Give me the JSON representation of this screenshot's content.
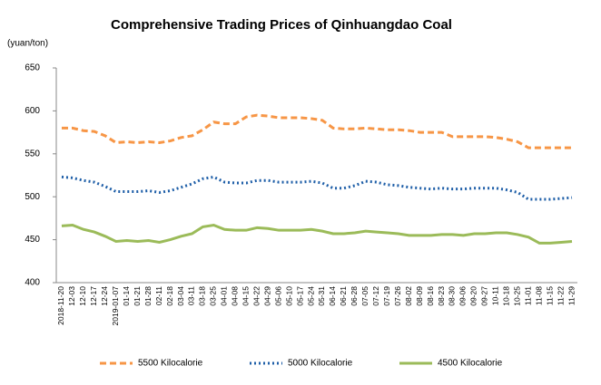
{
  "chart_data": {
    "type": "line",
    "title": "Comprehensive Trading Prices of Qinhuangdao Coal",
    "y_axis_label": "(yuan/ton)",
    "categories": [
      "2018-11-20",
      "12-03",
      "12-10",
      "12-17",
      "12-24",
      "2019-01-07",
      "01-14",
      "01-21",
      "01-28",
      "02-11",
      "02-18",
      "03-04",
      "03-11",
      "03-18",
      "03-25",
      "04-01",
      "04-08",
      "04-15",
      "04-22",
      "04-29",
      "05-06",
      "05-10",
      "05-17",
      "05-24",
      "05-31",
      "06-14",
      "06-21",
      "06-28",
      "07-05",
      "07-12",
      "07-19",
      "07-26",
      "08-02",
      "08-09",
      "08-16",
      "08-23",
      "08-30",
      "09-06",
      "09-20",
      "09-27",
      "10-11",
      "10-18",
      "10-25",
      "11-01",
      "11-08",
      "11-15",
      "11-22",
      "11-29"
    ],
    "series": [
      {
        "name": "5500 Kilocalorie",
        "color": "#f79646",
        "style": "dashed",
        "values": [
          580,
          580,
          577,
          576,
          571,
          563,
          564,
          563,
          564,
          563,
          565,
          569,
          571,
          578,
          587,
          585,
          585,
          593,
          595,
          594,
          592,
          592,
          592,
          591,
          589,
          580,
          579,
          579,
          580,
          579,
          578,
          578,
          577,
          575,
          575,
          575,
          570,
          570,
          570,
          570,
          569,
          567,
          564,
          557,
          557,
          557,
          557,
          557
        ]
      },
      {
        "name": "5000 Kilocalorie",
        "color": "#1f5fa8",
        "style": "dotted",
        "values": [
          523,
          522,
          519,
          517,
          512,
          506,
          506,
          506,
          507,
          505,
          507,
          511,
          515,
          521,
          523,
          517,
          516,
          516,
          519,
          519,
          517,
          517,
          517,
          518,
          516,
          510,
          510,
          513,
          518,
          517,
          514,
          513,
          511,
          510,
          509,
          510,
          509,
          509,
          510,
          510,
          510,
          508,
          505,
          497,
          497,
          497,
          498,
          499
        ]
      },
      {
        "name": "4500 Kilocalorie",
        "color": "#9bbb59",
        "style": "solid",
        "values": [
          466,
          467,
          462,
          459,
          454,
          448,
          449,
          448,
          449,
          447,
          450,
          454,
          457,
          465,
          467,
          462,
          461,
          461,
          464,
          463,
          461,
          461,
          461,
          462,
          460,
          457,
          457,
          458,
          460,
          459,
          458,
          457,
          455,
          455,
          455,
          456,
          456,
          455,
          457,
          457,
          458,
          458,
          456,
          453,
          446,
          446,
          447,
          448
        ]
      }
    ],
    "ylim": [
      400,
      650
    ],
    "yticks": [
      400,
      450,
      500,
      550,
      600,
      650
    ],
    "grid": false,
    "legend": "bottom"
  }
}
